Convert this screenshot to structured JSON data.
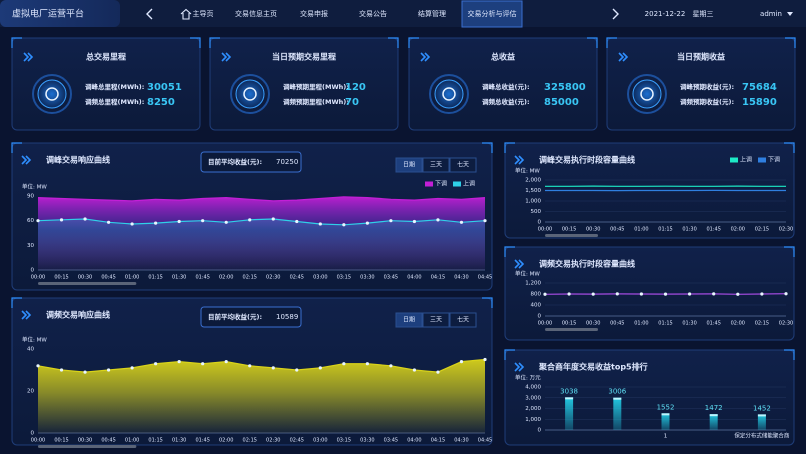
{
  "header": {
    "title": "虚拟电厂运营平台",
    "nav": [
      "主导页",
      "交易信息主页",
      "交易申报",
      "交易公告",
      "结算管理",
      "交易分析与评估"
    ],
    "date": "2021-12-22",
    "weekday": "星期三",
    "user": "admin"
  },
  "kpis": [
    {
      "title": "总交易里程",
      "rows": [
        {
          "label": "调峰总里程(MWh):",
          "value": 30051
        },
        {
          "label": "调频总里程(MWh):",
          "value": 8250
        }
      ]
    },
    {
      "title": "当日预期交易里程",
      "rows": [
        {
          "label": "调峰预期里程(MWh):",
          "value": 120
        },
        {
          "label": "调频预期里程(MWh):",
          "value": 70
        }
      ]
    },
    {
      "title": "总收益",
      "rows": [
        {
          "label": "调峰总收益(元):",
          "value": 325800
        },
        {
          "label": "调频总收益(元):",
          "value": 85000
        }
      ]
    },
    {
      "title": "当日预期收益",
      "rows": [
        {
          "label": "调峰预期收益(元):",
          "value": 75684
        },
        {
          "label": "调频预期收益(元):",
          "value": 15890
        }
      ]
    }
  ],
  "charts": [
    {
      "type": "area",
      "title": "调峰交易响应曲线",
      "avg_label": "目前平均收益(元):",
      "avg_value": 70250,
      "tabs": [
        "日期",
        "三天",
        "七天"
      ],
      "unit": "单位: MW",
      "grid": false,
      "x": [
        "00:00",
        "00:15",
        "00:30",
        "00:45",
        "01:00",
        "01:15",
        "01:30",
        "01:45",
        "02:00",
        "02:15",
        "02:30",
        "02:45",
        "03:00",
        "03:15",
        "03:30",
        "03:45",
        "04:00",
        "04:15",
        "04:30",
        "04:45"
      ],
      "ylim": [
        0,
        90
      ],
      "yticks": [
        0,
        30,
        60,
        90
      ],
      "series": [
        {
          "name": "下调",
          "color": "#c21fd6",
          "markers": false,
          "values": [
            88,
            87,
            86,
            85,
            84,
            86,
            85,
            87,
            88,
            86,
            84,
            85,
            87,
            89,
            88,
            86,
            85,
            87,
            86,
            88
          ]
        },
        {
          "name": "上调",
          "color": "#2fd0e8",
          "markers": true,
          "values": [
            60,
            61,
            62,
            58,
            56,
            57,
            59,
            60,
            58,
            61,
            62,
            59,
            56,
            55,
            57,
            60,
            59,
            61,
            58,
            60
          ]
        }
      ]
    },
    {
      "type": "area",
      "title": "调频交易响应曲线",
      "avg_label": "目前平均收益(元):",
      "avg_value": 10589,
      "tabs": [
        "日期",
        "三天",
        "七天"
      ],
      "unit": "单位: MW",
      "grid": false,
      "x": [
        "00:00",
        "00:15",
        "00:30",
        "00:45",
        "01:00",
        "01:15",
        "01:30",
        "01:45",
        "02:00",
        "02:15",
        "02:30",
        "02:45",
        "03:00",
        "03:15",
        "03:30",
        "03:45",
        "04:00",
        "04:15",
        "04:30",
        "04:45"
      ],
      "ylim": [
        0,
        40
      ],
      "yticks": [
        0,
        20,
        40
      ],
      "series": [
        {
          "color": "#d9d31a",
          "markers": true,
          "values": [
            32,
            30,
            29,
            30,
            31,
            33,
            34,
            33,
            34,
            32,
            31,
            30,
            31,
            33,
            33,
            32,
            30,
            29,
            34,
            35
          ]
        }
      ]
    },
    {
      "type": "line",
      "title": "调峰交易执行时段容量曲线",
      "unit": "单位: MW",
      "grid": true,
      "x": [
        "00:00",
        "00:15",
        "00:30",
        "00:45",
        "01:00",
        "01:15",
        "01:30",
        "01:45",
        "02:00",
        "02:15",
        "02:30"
      ],
      "ylim": [
        0,
        2000
      ],
      "yticks": [
        0,
        500,
        {
          "value": 1000,
          "label": "1,000"
        },
        {
          "value": 1500,
          "label": "1,500"
        },
        {
          "value": 2000,
          "label": "2,000"
        }
      ],
      "series": [
        {
          "name": "上调",
          "color": "#1de9c6",
          "markers": false,
          "values": [
            1700,
            1700,
            1710,
            1700,
            1700,
            1705,
            1700,
            1700,
            1710,
            1700,
            1700
          ]
        },
        {
          "name": "下调",
          "color": "#2f7fe0",
          "markers": false,
          "values": [
            1500,
            1500,
            1500,
            1495,
            1500,
            1500,
            1500,
            1505,
            1500,
            1500,
            1500
          ]
        }
      ]
    },
    {
      "type": "line",
      "title": "调频交易执行时段容量曲线",
      "unit": "单位: MW",
      "grid": true,
      "x": [
        "00:00",
        "00:15",
        "00:30",
        "00:45",
        "01:00",
        "01:15",
        "01:30",
        "01:45",
        "02:00",
        "02:15",
        "02:30"
      ],
      "ylim": [
        0,
        1200
      ],
      "yticks": [
        0,
        400,
        800,
        {
          "value": 1200,
          "label": "1,200"
        }
      ],
      "series": [
        {
          "color": "#a44be0",
          "markers": true,
          "values": [
            790,
            800,
            795,
            805,
            800,
            795,
            800,
            805,
            790,
            800,
            810
          ]
        }
      ]
    },
    {
      "type": "bar",
      "title": "聚合商年度交易收益top5排行",
      "unit": "单位: 万元",
      "grid": true,
      "categories": [
        null,
        null,
        "1",
        null,
        "保定分布式储能聚合商"
      ],
      "ylim": [
        0,
        4000
      ],
      "yticks": [
        0,
        {
          "value": 1000,
          "label": "1,000"
        },
        {
          "value": 2000,
          "label": "2,000"
        },
        {
          "value": 3000,
          "label": "3,000"
        },
        {
          "value": 4000,
          "label": "4,000"
        }
      ],
      "values": [
        3038,
        3006,
        1552,
        1472,
        1452
      ],
      "color": "#22c7e0"
    }
  ]
}
